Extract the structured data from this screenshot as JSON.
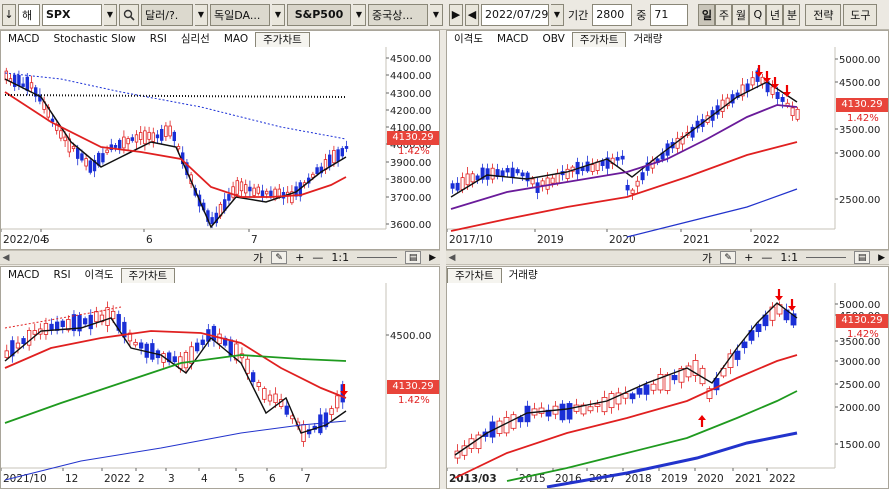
{
  "toolbar": {
    "down_arrow": "↓",
    "market": "해",
    "symbol": "SPX",
    "search_icon": "search-icon",
    "currency": "달러/?.",
    "country": "독일DA...",
    "index_name": "S&P500",
    "region": "중국상...",
    "date": "2022/07/29",
    "period_label": "기간",
    "period_value": "2800",
    "count_label": "중",
    "count_value": "71",
    "timeframes": [
      "일",
      "주",
      "월",
      "Q",
      "년",
      "분"
    ],
    "strategy": "전략",
    "tools": "도구"
  },
  "panels": {
    "top_left": {
      "tabs": [
        "MACD",
        "Stochastic Slow",
        "RSI",
        "심리선",
        "MAO",
        "주가차트"
      ],
      "active_tab": "주가차트",
      "y_labels": [
        "4500.00",
        "4400.00",
        "4300.00",
        "4200.00",
        "4100.00",
        "4000.00",
        "3900.00",
        "3800.00",
        "3700.00",
        "3600.00"
      ],
      "price": "4130.29",
      "pct": "1.42%",
      "x_labels": [
        "2022/04",
        "5",
        "6",
        "7"
      ]
    },
    "top_right": {
      "tabs": [
        "이격도",
        "MACD",
        "OBV",
        "주가차트",
        "거래량"
      ],
      "active_tab": "주가차트",
      "y_labels": [
        "5000.00",
        "4500.00",
        "3500.00",
        "3000.00",
        "2500.00"
      ],
      "price": "4130.29",
      "pct": "1.42%",
      "x_labels": [
        "2017/10",
        "2019",
        "2020",
        "2021",
        "2022"
      ]
    },
    "bottom_left": {
      "tabs": [
        "MACD",
        "RSI",
        "이격도",
        "주가차트"
      ],
      "active_tab": "주가차트",
      "y_labels": [
        "4500.00"
      ],
      "price": "4130.29",
      "pct": "1.42%",
      "x_labels": [
        "2021/10",
        "12",
        "2022",
        "2",
        "3",
        "4",
        "5",
        "6",
        "7"
      ]
    },
    "bottom_right": {
      "tabs": [
        "주가차트",
        "거래량"
      ],
      "active_tab": "주가차트",
      "y_labels": [
        "5000.00",
        "4500.00",
        "3500.00",
        "3000.00",
        "2500.00",
        "2000.00",
        "1500.00"
      ],
      "price": "4130.29",
      "pct": "1.42%",
      "x_labels": [
        "2013/03",
        "2015",
        "2016",
        "2017",
        "2018",
        "2019",
        "2020",
        "2021",
        "2022"
      ]
    }
  },
  "divider": {
    "zoom_label": "1:1",
    "plus": "+",
    "minus": "—",
    "label_ga": "가"
  },
  "colors": {
    "up": "#e02020",
    "down": "#1a2fd6",
    "ma_red": "#e02020",
    "ma_green": "#1f9a1f",
    "ma_purple": "#6a1b9a",
    "ma_blue": "#2233cc",
    "price_badge": "#e8443a"
  }
}
